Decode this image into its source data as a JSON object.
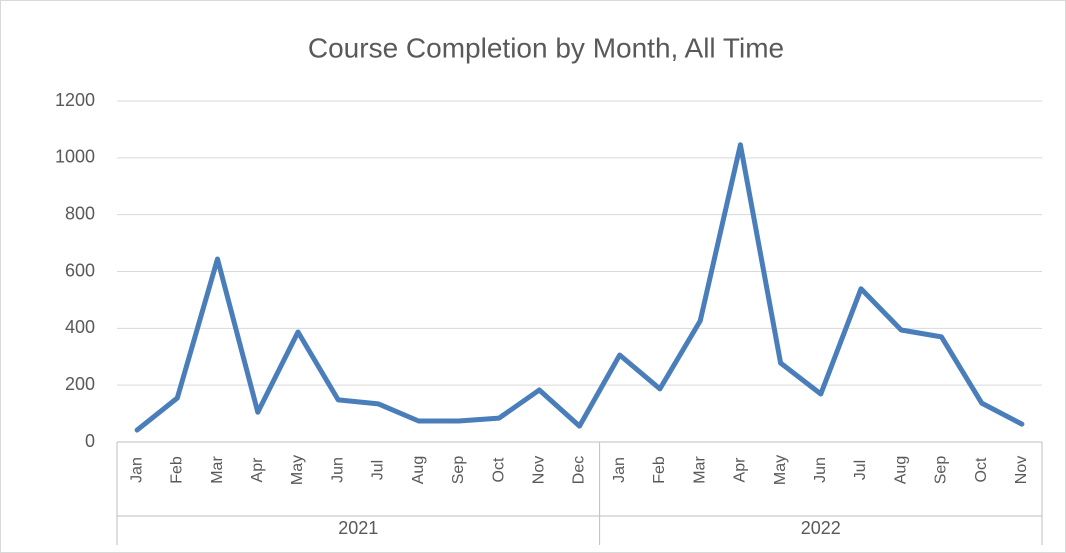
{
  "chart_data": {
    "type": "line",
    "title": "Course Completion by Month, All Time",
    "color": "#4a7ebb",
    "ylim": [
      0,
      1200
    ],
    "yticks": [
      0,
      200,
      400,
      600,
      800,
      1000,
      1200
    ],
    "grid": true,
    "groups": [
      {
        "label": "2021",
        "categories": [
          "Jan",
          "Feb",
          "Mar",
          "Apr",
          "May",
          "Jun",
          "Jul",
          "Aug",
          "Sep",
          "Oct",
          "Nov",
          "Dec"
        ],
        "values": [
          42,
          155,
          644,
          105,
          387,
          148,
          134,
          74,
          74,
          84,
          183,
          56
        ]
      },
      {
        "label": "2022",
        "categories": [
          "Jan",
          "Feb",
          "Mar",
          "Apr",
          "May",
          "Jun",
          "Jul",
          "Aug",
          "Sep",
          "Oct",
          "Nov"
        ],
        "values": [
          306,
          187,
          426,
          1046,
          278,
          169,
          539,
          394,
          370,
          137,
          63
        ]
      }
    ]
  }
}
